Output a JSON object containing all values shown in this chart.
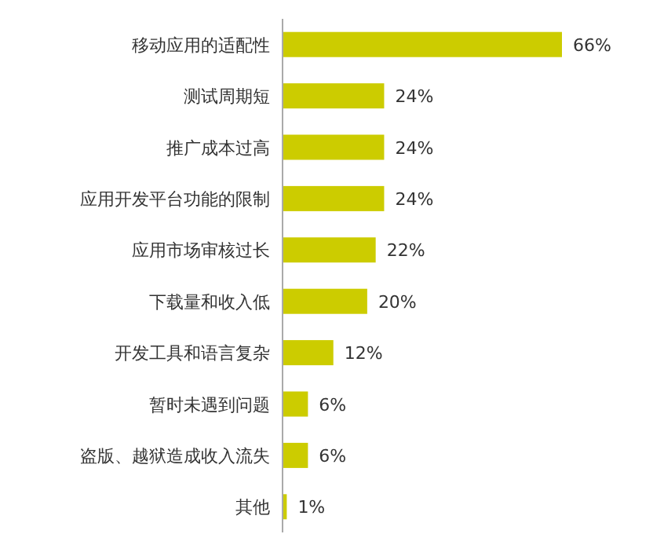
{
  "chart_data": {
    "type": "bar",
    "orientation": "horizontal",
    "categories": [
      "移动应用的适配性",
      "测试周期短",
      "推广成本过高",
      "应用开发平台功能的限制",
      "应用市场审核过长",
      "下载量和收入低",
      "开发工具和语言复杂",
      "暂时未遇到问题",
      "盗版、越狱造成收入流失",
      "其他"
    ],
    "values": [
      66,
      24,
      24,
      24,
      22,
      20,
      12,
      6,
      6,
      1
    ],
    "value_labels": [
      "66%",
      "24%",
      "24%",
      "24%",
      "22%",
      "20%",
      "12%",
      "6%",
      "6%",
      "1%"
    ],
    "color": "#cccc00"
  }
}
